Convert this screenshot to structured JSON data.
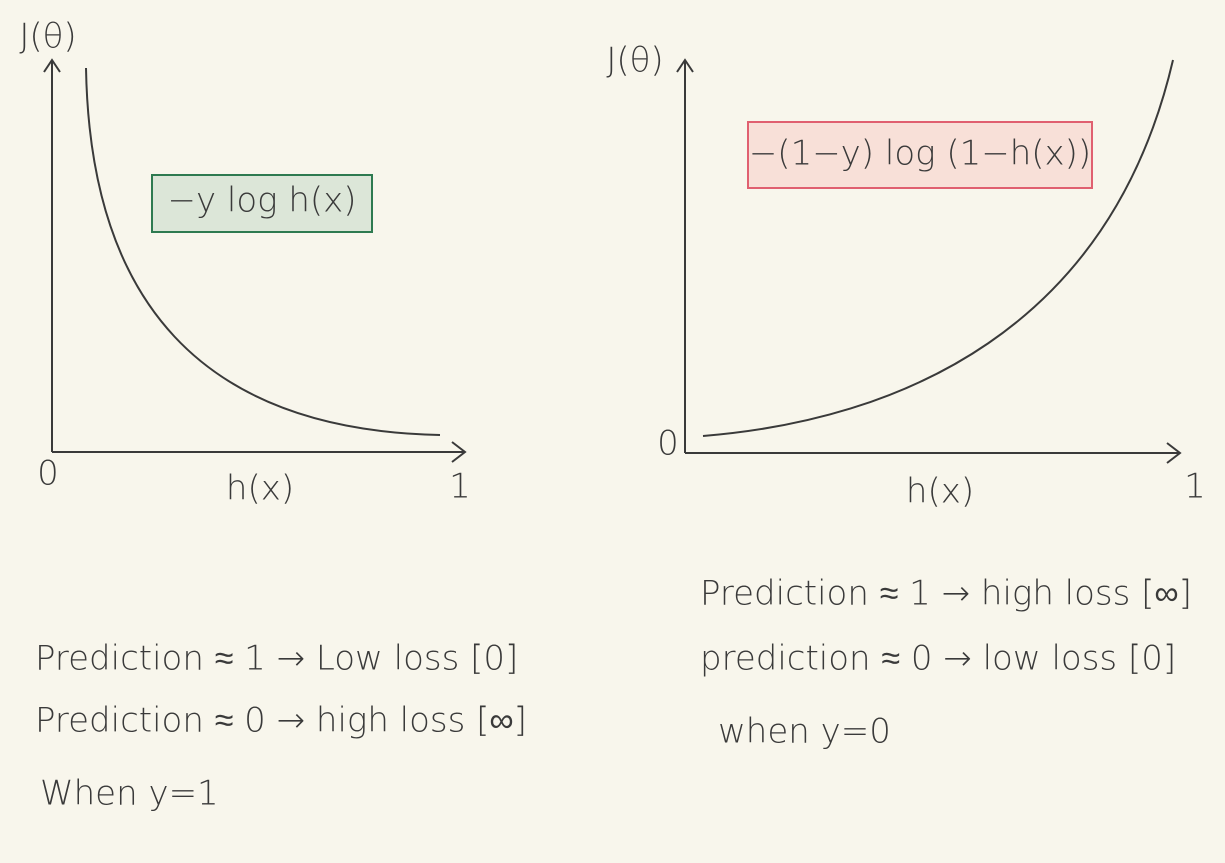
{
  "panels": [
    {
      "y_axis_label": "J(θ)",
      "origin_label": "0",
      "x_axis_label": "h(x)",
      "x_end_label": "1",
      "formula": "−y log h(x)",
      "notes": [
        "Prediction ≈ 1 → Low loss [0]",
        "Prediction ≈ 0 → high loss [∞]",
        "When y=1"
      ]
    },
    {
      "y_axis_label": "J(θ)",
      "origin_label": "0",
      "x_axis_label": "h(x)",
      "x_end_label": "1",
      "formula": "−(1−y) log (1−h(x))",
      "notes": [
        "Prediction ≈ 1 → high loss [∞]",
        "prediction ≈ 0 → low loss [0]",
        "when y=0"
      ]
    }
  ]
}
